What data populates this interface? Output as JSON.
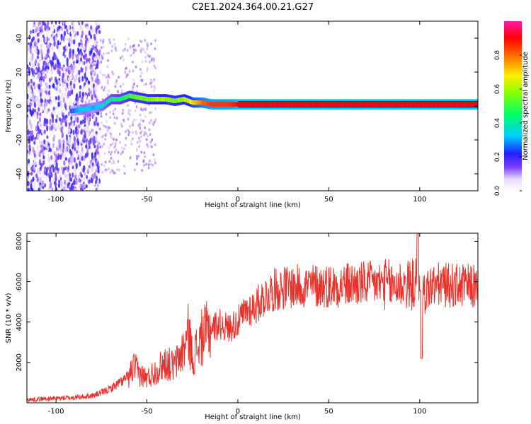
{
  "title": "C2E1.2024.364.00.21.G27",
  "chart_data": [
    {
      "type": "heatmap",
      "xlabel": "Height of straight line (km)",
      "ylabel": "Frequency (Hz)",
      "xlim": [
        -116,
        132
      ],
      "ylim": [
        -50,
        50
      ],
      "xticks": [
        -100,
        -50,
        0,
        50,
        100
      ],
      "yticks": [
        -40,
        -20,
        0,
        20,
        40
      ],
      "colorbar": {
        "label": "Normalized spectral amplitude",
        "range": [
          0,
          1
        ],
        "ticks": [
          0.0,
          0.2,
          0.4,
          0.6,
          0.8
        ],
        "tick_labels": [
          "0.0",
          "0.2",
          "0.4",
          "0.6",
          "0.8"
        ],
        "colormap": "rainbow (white-purple-blue-cyan-green-yellow-red-magenta)"
      },
      "ridge": {
        "description": "dominant frequency trace",
        "points": [
          {
            "x": -92,
            "amp": 0.25,
            "f": -3
          },
          {
            "x": -85,
            "amp": 0.35,
            "f": -2
          },
          {
            "x": -80,
            "amp": 0.3,
            "f": -1
          },
          {
            "x": -75,
            "amp": 0.35,
            "f": 0
          },
          {
            "x": -70,
            "amp": 0.4,
            "f": 4
          },
          {
            "x": -65,
            "amp": 0.45,
            "f": 4
          },
          {
            "x": -60,
            "amp": 0.5,
            "f": 6
          },
          {
            "x": -55,
            "amp": 0.55,
            "f": 5
          },
          {
            "x": -50,
            "amp": 0.55,
            "f": 4
          },
          {
            "x": -45,
            "amp": 0.6,
            "f": 4
          },
          {
            "x": -40,
            "amp": 0.6,
            "f": 4
          },
          {
            "x": -35,
            "amp": 0.55,
            "f": 3
          },
          {
            "x": -30,
            "amp": 0.6,
            "f": 4
          },
          {
            "x": -25,
            "amp": 0.7,
            "f": 2
          },
          {
            "x": -20,
            "amp": 0.8,
            "f": 2
          },
          {
            "x": -15,
            "amp": 0.85,
            "f": 1
          },
          {
            "x": -10,
            "amp": 0.85,
            "f": 1
          },
          {
            "x": -5,
            "amp": 0.85,
            "f": 1
          },
          {
            "x": 0,
            "amp": 0.9,
            "f": 1
          },
          {
            "x": 50,
            "amp": 0.9,
            "f": 1
          },
          {
            "x": 100,
            "amp": 0.9,
            "f": 1
          },
          {
            "x": 132,
            "amp": 0.9,
            "f": 1
          }
        ]
      }
    },
    {
      "type": "line",
      "xlabel": "Height of straight line (km)",
      "ylabel": "SNR (10 * v/v)",
      "xlim": [
        -116,
        132
      ],
      "ylim": [
        0,
        8400
      ],
      "xticks": [
        -100,
        -50,
        0,
        50,
        100
      ],
      "yticks": [
        2000,
        4000,
        6000,
        8000
      ],
      "series": [
        {
          "color": "#e8322b",
          "x": [
            -116,
            -110,
            -100,
            -90,
            -85,
            -80,
            -75,
            -70,
            -65,
            -60,
            -57,
            -55,
            -50,
            -45,
            -40,
            -35,
            -30,
            -27,
            -25,
            -20,
            -15,
            -10,
            -5,
            0,
            5,
            10,
            15,
            20,
            25,
            30,
            40,
            50,
            60,
            70,
            80,
            85,
            90,
            95,
            98,
            100,
            102,
            105,
            110,
            120,
            132
          ],
          "y": [
            150,
            180,
            220,
            260,
            300,
            350,
            500,
            700,
            1000,
            1300,
            1800,
            1500,
            1200,
            1600,
            2000,
            1800,
            2600,
            3500,
            2200,
            3200,
            3700,
            3900,
            3700,
            4000,
            4600,
            4800,
            5300,
            5600,
            5700,
            5750,
            5800,
            5800,
            5850,
            5900,
            5900,
            5800,
            5900,
            5800,
            6000,
            6000,
            5300,
            5700,
            5850,
            5800,
            5750
          ]
        }
      ]
    }
  ]
}
